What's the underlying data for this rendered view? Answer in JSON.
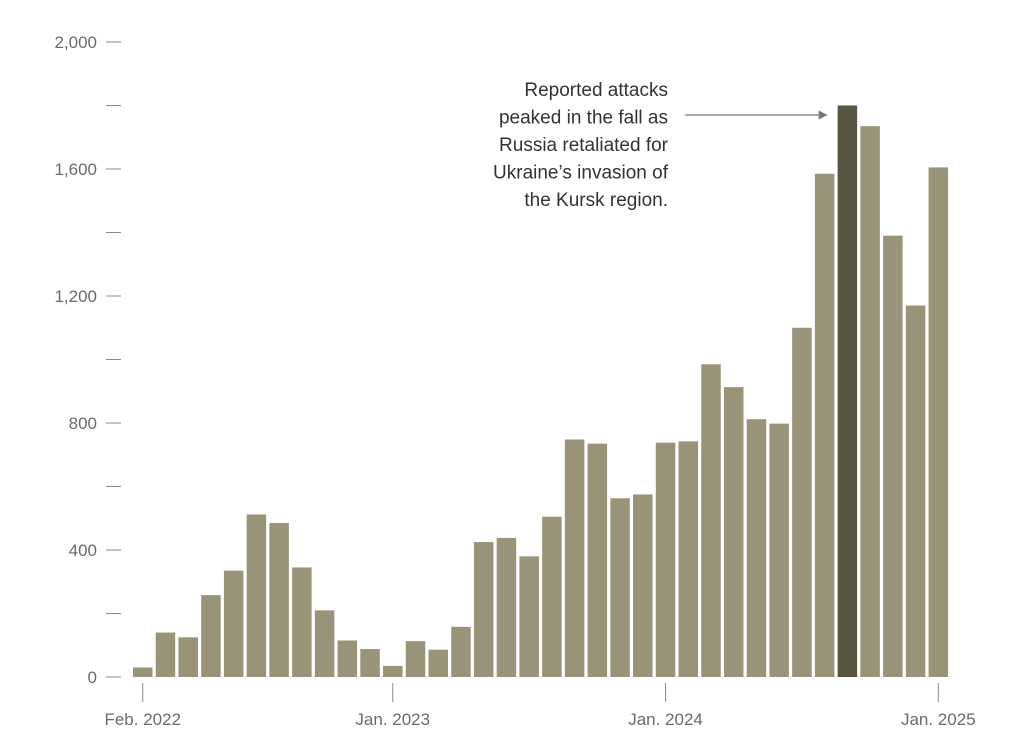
{
  "chart_data": {
    "type": "bar",
    "title": "",
    "xlabel": "",
    "ylabel": "",
    "ylim": [
      0,
      2000
    ],
    "y_ticks": [
      {
        "value": 0,
        "label": "0"
      },
      {
        "value": 200,
        "label": ""
      },
      {
        "value": 400,
        "label": "400"
      },
      {
        "value": 600,
        "label": ""
      },
      {
        "value": 800,
        "label": "800"
      },
      {
        "value": 1000,
        "label": ""
      },
      {
        "value": 1200,
        "label": "1,200"
      },
      {
        "value": 1400,
        "label": ""
      },
      {
        "value": 1600,
        "label": "1,600"
      },
      {
        "value": 1800,
        "label": ""
      },
      {
        "value": 2000,
        "label": "2,000"
      }
    ],
    "x_ticks": [
      {
        "index": 0,
        "label": "Feb. 2022"
      },
      {
        "index": 11,
        "label": "Jan. 2023"
      },
      {
        "index": 23,
        "label": "Jan. 2024"
      },
      {
        "index": 35,
        "label": "Jan. 2025"
      }
    ],
    "categories": [
      "2022-02",
      "2022-03",
      "2022-04",
      "2022-05",
      "2022-06",
      "2022-07",
      "2022-08",
      "2022-09",
      "2022-10",
      "2022-11",
      "2022-12",
      "2023-01",
      "2023-02",
      "2023-03",
      "2023-04",
      "2023-05",
      "2023-06",
      "2023-07",
      "2023-08",
      "2023-09",
      "2023-10",
      "2023-11",
      "2023-12",
      "2024-01",
      "2024-02",
      "2024-03",
      "2024-04",
      "2024-05",
      "2024-06",
      "2024-07",
      "2024-08",
      "2024-09",
      "2024-10",
      "2024-11",
      "2024-12",
      "2025-01"
    ],
    "values": [
      30,
      140,
      125,
      258,
      335,
      512,
      485,
      345,
      210,
      115,
      88,
      35,
      113,
      86,
      158,
      425,
      438,
      380,
      505,
      748,
      735,
      563,
      575,
      738,
      742,
      985,
      913,
      812,
      798,
      1100,
      1585,
      1800,
      1735,
      1390,
      1170,
      1605
    ],
    "highlight_index": 31,
    "colors": {
      "bar": "#999378",
      "highlight": "#57543f",
      "axis": "#888888",
      "arrow": "#777777"
    },
    "annotation": {
      "lines": [
        "Reported attacks",
        "peaked in the fall as",
        "Russia retaliated for",
        "Ukraine’s invasion of",
        "the Kursk region."
      ],
      "target_index": 31
    }
  }
}
